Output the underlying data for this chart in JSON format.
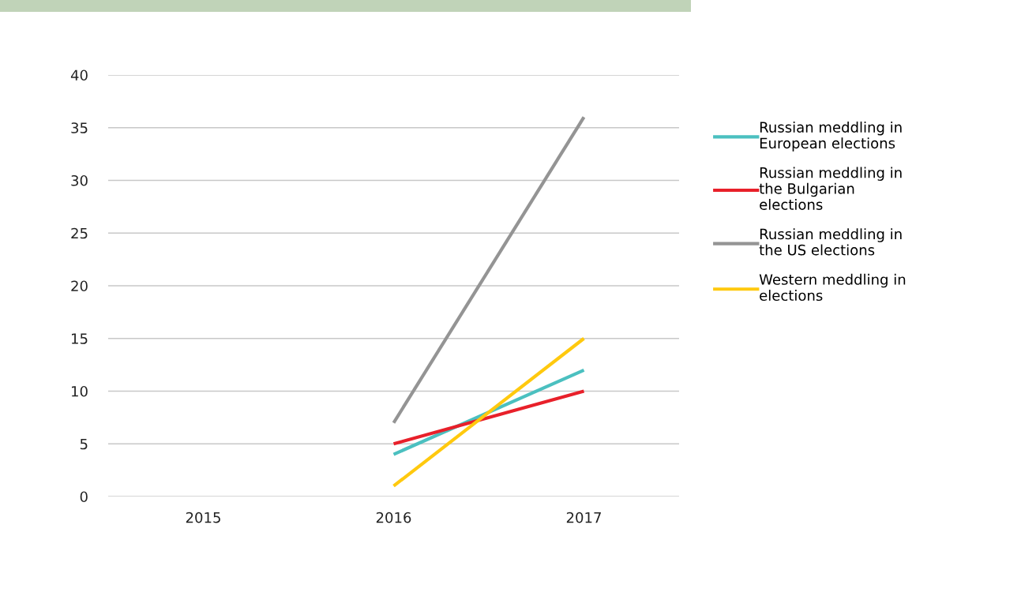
{
  "chart_data": {
    "type": "line",
    "categories": [
      "2015",
      "2016",
      "2017"
    ],
    "series": [
      {
        "name": "Russian meddling in European elections",
        "color": "#4bc0c0",
        "values": [
          null,
          4,
          12
        ]
      },
      {
        "name": "Russian meddling in the Bulgarian elections",
        "color": "#e8202a",
        "values": [
          null,
          5,
          10
        ]
      },
      {
        "name": "Russian meddling in the US elections",
        "color": "#949494",
        "values": [
          null,
          7,
          36
        ]
      },
      {
        "name": "Western meddling in elections",
        "color": "#ffc90e",
        "values": [
          null,
          1,
          15
        ]
      }
    ],
    "ylim": [
      0,
      40
    ],
    "yticks": [
      0,
      5,
      10,
      15,
      20,
      25,
      30,
      35,
      40
    ],
    "grid": "y",
    "legend": "right",
    "marker": "none",
    "line_style": "solid"
  }
}
